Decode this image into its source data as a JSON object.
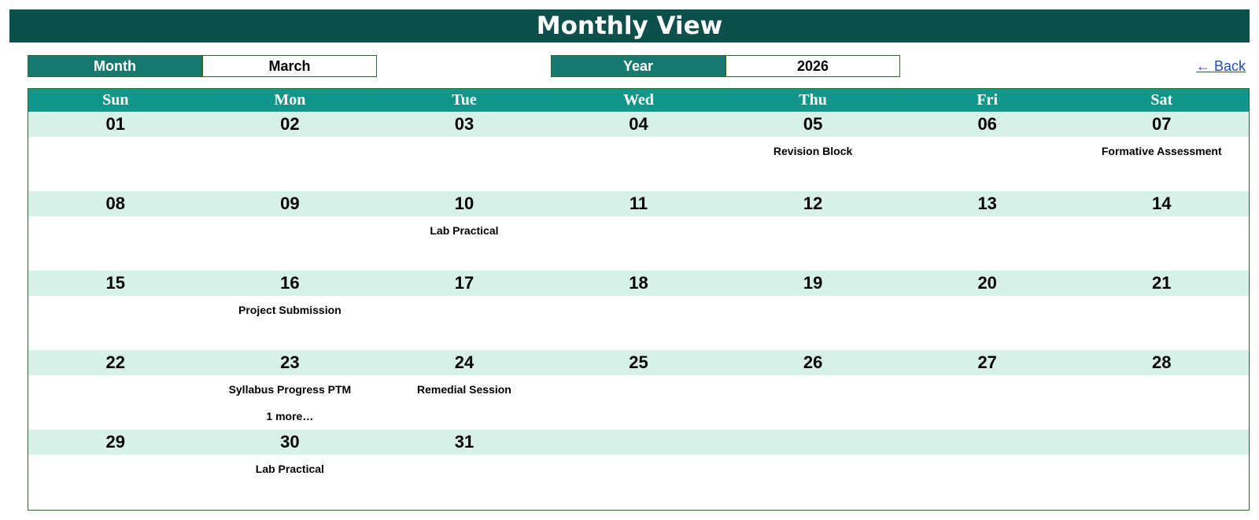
{
  "title": "Monthly View",
  "month_selector": {
    "label": "Month",
    "value": "March"
  },
  "year_selector": {
    "label": "Year",
    "value": "2026"
  },
  "back_link": "← Back",
  "weekdays": [
    "Sun",
    "Mon",
    "Tue",
    "Wed",
    "Thu",
    "Fri",
    "Sat"
  ],
  "weeks": [
    [
      {
        "day": "01",
        "events": []
      },
      {
        "day": "02",
        "events": []
      },
      {
        "day": "03",
        "events": []
      },
      {
        "day": "04",
        "events": []
      },
      {
        "day": "05",
        "events": [
          "Revision Block"
        ]
      },
      {
        "day": "06",
        "events": []
      },
      {
        "day": "07",
        "events": [
          "Formative Assessment"
        ]
      }
    ],
    [
      {
        "day": "08",
        "events": []
      },
      {
        "day": "09",
        "events": []
      },
      {
        "day": "10",
        "events": [
          "Lab Practical"
        ]
      },
      {
        "day": "11",
        "events": []
      },
      {
        "day": "12",
        "events": []
      },
      {
        "day": "13",
        "events": []
      },
      {
        "day": "14",
        "events": []
      }
    ],
    [
      {
        "day": "15",
        "events": []
      },
      {
        "day": "16",
        "events": [
          "Project Submission"
        ]
      },
      {
        "day": "17",
        "events": []
      },
      {
        "day": "18",
        "events": []
      },
      {
        "day": "19",
        "events": []
      },
      {
        "day": "20",
        "events": []
      },
      {
        "day": "21",
        "events": []
      }
    ],
    [
      {
        "day": "22",
        "events": []
      },
      {
        "day": "23",
        "events": [
          "Syllabus Progress PTM",
          "1 more…"
        ]
      },
      {
        "day": "24",
        "events": [
          "Remedial Session"
        ]
      },
      {
        "day": "25",
        "events": []
      },
      {
        "day": "26",
        "events": []
      },
      {
        "day": "27",
        "events": []
      },
      {
        "day": "28",
        "events": []
      }
    ],
    [
      {
        "day": "29",
        "events": []
      },
      {
        "day": "30",
        "events": [
          "Lab Practical"
        ]
      },
      {
        "day": "31",
        "events": []
      },
      {
        "day": "",
        "events": []
      },
      {
        "day": "",
        "events": []
      },
      {
        "day": "",
        "events": []
      },
      {
        "day": "",
        "events": []
      }
    ]
  ],
  "colors": {
    "title_bg": "#0d4f4a",
    "header_bg": "#12968a",
    "label_bg": "#167a70",
    "day_num_bg": "#d7f0ea",
    "border": "#2d6b2b",
    "link": "#1f4fb4"
  }
}
